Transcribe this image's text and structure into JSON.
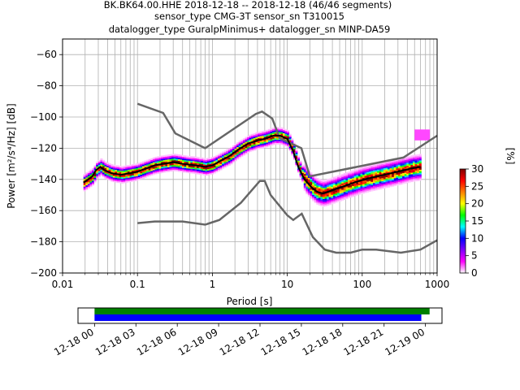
{
  "chart_data": {
    "type": "heatmap",
    "title_lines": [
      "BK.BK64.00.HHE   2018-12-18 -- 2018-12-18  (46/46 segments)",
      "sensor_type CMG-3T sensor_sn T310015",
      "datalogger_type GuralpMinimus+ datalogger_sn MINP-DA59"
    ],
    "xlabel": "Period [s]",
    "ylabel": "Power [m²/s⁴/Hz] [dB]",
    "x_scale": "log",
    "xlim": [
      0.01,
      1000
    ],
    "ylim": [
      -200,
      -50
    ],
    "x_ticks": [
      {
        "value": 0.01,
        "label": "0.01"
      },
      {
        "value": 0.1,
        "label": "0.1"
      },
      {
        "value": 1,
        "label": "1"
      },
      {
        "value": 10,
        "label": "10"
      },
      {
        "value": 100,
        "label": "100"
      },
      {
        "value": 1000,
        "label": "1000"
      }
    ],
    "y_ticks": [
      -60,
      -80,
      -100,
      -120,
      -140,
      -160,
      -180,
      -200
    ],
    "grid": true,
    "colorbar": {
      "label": "[%]",
      "range": [
        0,
        30
      ],
      "ticks": [
        0,
        5,
        10,
        15,
        20,
        25,
        30
      ],
      "colors": [
        "#ffffff",
        "#ff00ff",
        "#7f00ff",
        "#0000ff",
        "#00ffff",
        "#00ff00",
        "#ffff00",
        "#ff7f00",
        "#ff0000",
        "#7f0000"
      ]
    },
    "mode_curve": [
      [
        0.019,
        -142
      ],
      [
        0.022,
        -140
      ],
      [
        0.025,
        -138
      ],
      [
        0.028,
        -134
      ],
      [
        0.032,
        -132
      ],
      [
        0.036,
        -134
      ],
      [
        0.045,
        -136
      ],
      [
        0.06,
        -137
      ],
      [
        0.08,
        -136
      ],
      [
        0.1,
        -135
      ],
      [
        0.13,
        -133
      ],
      [
        0.17,
        -131
      ],
      [
        0.22,
        -130
      ],
      [
        0.3,
        -129
      ],
      [
        0.4,
        -130
      ],
      [
        0.6,
        -131
      ],
      [
        0.8,
        -132
      ],
      [
        1.0,
        -131
      ],
      [
        1.3,
        -128
      ],
      [
        1.7,
        -125
      ],
      [
        2.2,
        -121
      ],
      [
        3.0,
        -117
      ],
      [
        4.0,
        -115
      ],
      [
        5.0,
        -114
      ],
      [
        6.5,
        -112
      ],
      [
        8.0,
        -112
      ],
      [
        10,
        -114
      ],
      [
        12,
        -122
      ],
      [
        14,
        -132
      ],
      [
        17,
        -140
      ],
      [
        21,
        -145
      ],
      [
        25,
        -148
      ],
      [
        30,
        -149
      ],
      [
        40,
        -147
      ],
      [
        60,
        -144
      ],
      [
        90,
        -141
      ],
      [
        130,
        -139
      ],
      [
        200,
        -137
      ],
      [
        300,
        -135
      ],
      [
        450,
        -133
      ],
      [
        600,
        -132
      ]
    ],
    "nlnm_curve": [
      [
        0.1,
        -168
      ],
      [
        0.17,
        -167
      ],
      [
        0.4,
        -167
      ],
      [
        0.8,
        -169
      ],
      [
        1.24,
        -166
      ],
      [
        2.4,
        -155
      ],
      [
        4.3,
        -141
      ],
      [
        5.0,
        -141
      ],
      [
        6.0,
        -150
      ],
      [
        10,
        -163
      ],
      [
        12,
        -166
      ],
      [
        15.6,
        -162
      ],
      [
        21.9,
        -177
      ],
      [
        31.6,
        -185
      ],
      [
        45,
        -187
      ],
      [
        70,
        -187
      ],
      [
        100,
        -185
      ],
      [
        154,
        -185
      ],
      [
        328,
        -187
      ],
      [
        600,
        -185
      ],
      [
        1000,
        -179
      ]
    ],
    "nhnm_curve": [
      [
        0.1,
        -91.5
      ],
      [
        0.22,
        -97.4
      ],
      [
        0.32,
        -110.5
      ],
      [
        0.8,
        -120
      ],
      [
        3.8,
        -98
      ],
      [
        4.6,
        -96.5
      ],
      [
        6.3,
        -101
      ],
      [
        7.9,
        -113.5
      ],
      [
        15.4,
        -120
      ],
      [
        20,
        -138
      ],
      [
        354.8,
        -126
      ],
      [
        1000,
        -112
      ]
    ],
    "high_cluster": {
      "period_range": [
        500,
        800
      ],
      "db_range": [
        -115,
        -108
      ]
    },
    "time_axis": {
      "tick_labels": [
        "12-18 00",
        "12-18 03",
        "12-18 06",
        "12-18 09",
        "12-18 12",
        "12-18 15",
        "12-18 18",
        "12-18 21",
        "12-19 00"
      ],
      "range_hours": [
        -1.2,
        25.2
      ],
      "bars": [
        {
          "color": "#008000",
          "start_hours": 0,
          "end_hours": 24.3
        },
        {
          "color": "#0000ff",
          "start_hours": 0,
          "end_hours": 23.7
        }
      ]
    }
  }
}
